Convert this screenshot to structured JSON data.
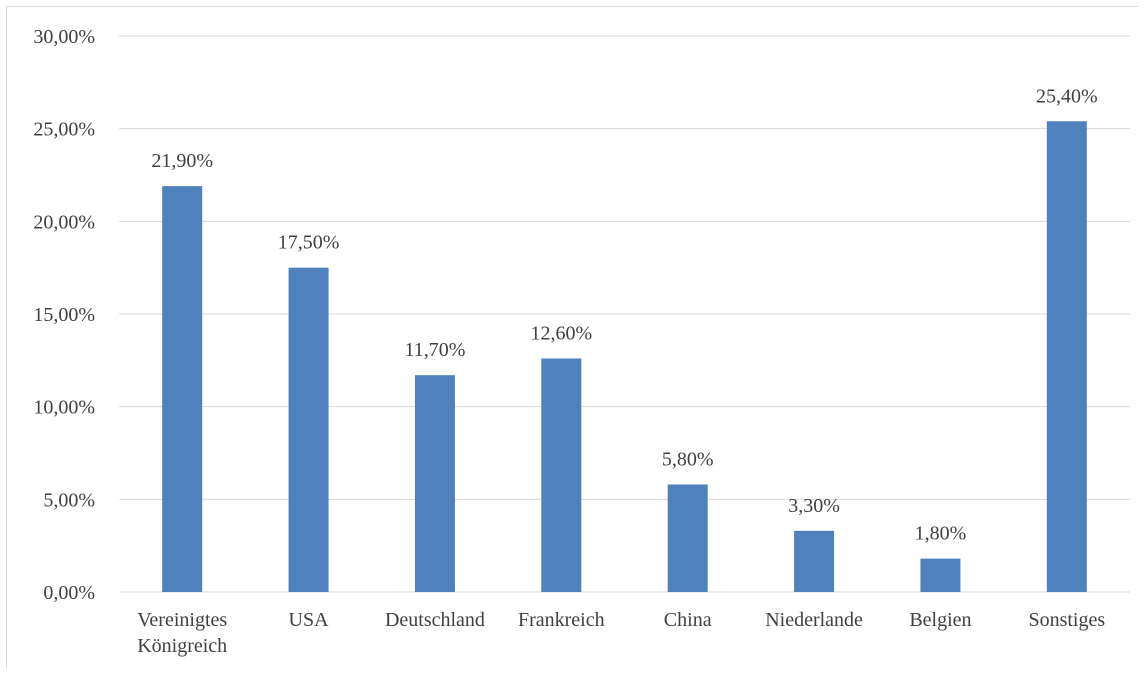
{
  "chart_data": {
    "type": "bar",
    "categories": [
      [
        "Vereinigtes",
        "Königreich"
      ],
      [
        "USA"
      ],
      [
        "Deutschland"
      ],
      [
        "Frankreich"
      ],
      [
        "China"
      ],
      [
        "Niederlande"
      ],
      [
        "Belgien"
      ],
      [
        "Sonstiges"
      ]
    ],
    "values": [
      21.9,
      17.5,
      11.7,
      12.6,
      5.8,
      3.3,
      1.8,
      25.4
    ],
    "value_labels": [
      "21,90%",
      "17,50%",
      "11,70%",
      "12,60%",
      "5,80%",
      "3,30%",
      "1,80%",
      "25,40%"
    ],
    "y_tick_values": [
      0,
      5,
      10,
      15,
      20,
      25,
      30
    ],
    "y_tick_labels": [
      "0,00%",
      "5,00%",
      "10,00%",
      "15,00%",
      "20,00%",
      "25,00%",
      "30,00%"
    ],
    "ylim": [
      0,
      30
    ],
    "grid": true,
    "legend": "none",
    "colors": {
      "bar": "#4f81bd",
      "grid": "#d9d9d9",
      "text": "#404040"
    }
  }
}
